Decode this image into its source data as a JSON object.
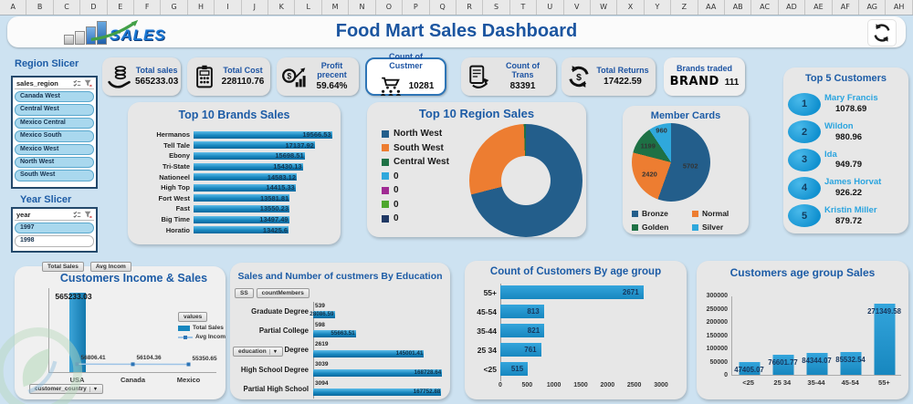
{
  "excel_columns": [
    "A",
    "B",
    "C",
    "D",
    "E",
    "F",
    "G",
    "H",
    "I",
    "J",
    "K",
    "L",
    "M",
    "N",
    "O",
    "P",
    "Q",
    "R",
    "S",
    "T",
    "U",
    "V",
    "W",
    "X",
    "Y",
    "Z",
    "AA",
    "AB",
    "AC",
    "AD",
    "AE",
    "AF",
    "AG",
    "AH"
  ],
  "header": {
    "title": "Food Mart Sales Dashboard",
    "logo_text": "SALES"
  },
  "slicers": {
    "region": {
      "heading": "Region Slicer",
      "field": "sales_region",
      "items": [
        "Canada West",
        "Central West",
        "Mexico Central",
        "Mexico South",
        "Mexico West",
        "North West",
        "South West"
      ]
    },
    "year": {
      "heading": "Year Slicer",
      "field": "year",
      "items": [
        "1997",
        "1998"
      ],
      "selected": "1997"
    }
  },
  "kpis": [
    {
      "label": "Total sales",
      "value": "565233.03",
      "icon": "coins-hand-icon"
    },
    {
      "label": "Total Cost",
      "value": "228110.76",
      "icon": "calculator-icon"
    },
    {
      "label": "Profit precent",
      "value": "59.64%",
      "icon": "money-bag-chart-icon"
    },
    {
      "label": "Count of Custmer",
      "value": "10281",
      "icon": "cart-customers-icon"
    },
    {
      "label": "Count of Trans",
      "value": "83391",
      "icon": "receipt-icon"
    },
    {
      "label": "Total Returns",
      "value": "17422.59",
      "icon": "dollar-refresh-icon"
    },
    {
      "label": "Brands traded",
      "value": "111",
      "icon": "brand-text-icon",
      "icon_text": "BRAND"
    }
  ],
  "top5": {
    "title": "Top 5 Customers",
    "items": [
      {
        "rank": "1",
        "name": "Mary Francis",
        "value": "1078.69"
      },
      {
        "rank": "2",
        "name": "Wildon",
        "value": "980.96"
      },
      {
        "rank": "3",
        "name": "Ida",
        "value": "949.79"
      },
      {
        "rank": "4",
        "name": "James Horvat",
        "value": "926.22"
      },
      {
        "rank": "5",
        "name": "Kristin Miller",
        "value": "879.72"
      }
    ]
  },
  "chart_data": [
    {
      "id": "brands",
      "type": "bar",
      "orientation": "horizontal",
      "title": "Top 10 Brands Sales",
      "categories": [
        "Hermanos",
        "Tell Tale",
        "Ebony",
        "Tri-State",
        "Nationeel",
        "High Top",
        "Fort West",
        "Fast",
        "Big Time",
        "Horatio"
      ],
      "values": [
        19566.53,
        17137.92,
        15698.51,
        15430.13,
        14583.12,
        14415.33,
        13581.81,
        13550.23,
        13497.49,
        13425.6
      ],
      "xlim": [
        0,
        20000
      ]
    },
    {
      "id": "region",
      "type": "pie",
      "subtype": "donut",
      "title": "Top 10 Region Sales",
      "segments": [
        {
          "label": "North West",
          "pct": 71.0,
          "color": "#235e8b"
        },
        {
          "label": "South West",
          "pct": 28.4,
          "color": "#ed7d31"
        },
        {
          "label": "Central West",
          "pct": 0.6,
          "color": "#1e7145"
        }
      ],
      "legend": [
        {
          "label": "North West",
          "color": "#235e8b"
        },
        {
          "label": "South West",
          "color": "#ed7d31"
        },
        {
          "label": "Central West",
          "color": "#1e7145"
        },
        {
          "label": "0",
          "color": "#2fa8dc"
        },
        {
          "label": "0",
          "color": "#a02b93"
        },
        {
          "label": "0",
          "color": "#4ea72e"
        },
        {
          "label": "0",
          "color": "#1f3864"
        }
      ]
    },
    {
      "id": "member",
      "type": "pie",
      "title": "Member Cards",
      "slices": [
        {
          "label": "Bronze",
          "value": 5702,
          "color": "#235e8b"
        },
        {
          "label": "Normal",
          "value": 2420,
          "color": "#ed7d31"
        },
        {
          "label": "Golden",
          "value": 1199,
          "color": "#1e7145"
        },
        {
          "label": "Silver",
          "value": 960,
          "color": "#2fa8dc"
        }
      ],
      "legend_order": [
        "Bronze",
        "Normal",
        "Golden",
        "Silver"
      ]
    },
    {
      "id": "income",
      "type": "combo",
      "title": "Customers Income & Sales",
      "field_buttons": [
        "Total Sales",
        "Avg Incom"
      ],
      "legend_header": "values",
      "axis_button": "customer_country",
      "categories": [
        "USA",
        "Canada",
        "Mexico"
      ],
      "ylim": [
        0,
        600000
      ],
      "series": [
        {
          "name": "Total Sales",
          "type": "bar",
          "color": "#1787bf",
          "values": [
            565233.03,
            0,
            0
          ]
        },
        {
          "name": "Avg Incom",
          "type": "line",
          "color": "#9dc3e6",
          "values": [
            56806.41,
            56104.36,
            55350.65
          ]
        }
      ]
    },
    {
      "id": "education",
      "type": "bar",
      "orientation": "horizontal",
      "title": "Sales and Number of custmers By Education",
      "field_buttons": [
        "SS",
        "countMembers"
      ],
      "axis_button": "education",
      "categories": [
        "Graduate Degree",
        "Partial College",
        "Bachelors Degree",
        "High School Degree",
        "Partial High School"
      ],
      "series": [
        {
          "name": "countMembers",
          "values": [
            539,
            598,
            2619,
            3039,
            3094
          ]
        },
        {
          "name": "Sales",
          "values": [
            28086.59,
            55663.51,
            145001.41,
            168728.64,
            167752.88
          ]
        }
      ],
      "xlim": [
        0,
        172000
      ]
    },
    {
      "id": "agecount",
      "type": "bar",
      "orientation": "horizontal",
      "title": "Count of Customers By age group",
      "categories": [
        "55+",
        "45-54",
        "35-44",
        "25 34",
        "<25"
      ],
      "values": [
        2671,
        813,
        821,
        761,
        515
      ],
      "xticks": [
        0,
        500,
        1000,
        1500,
        2000,
        2500,
        3000
      ],
      "xlim": [
        0,
        3000
      ]
    },
    {
      "id": "agesales",
      "type": "bar",
      "orientation": "vertical",
      "title": "Customers age group Sales",
      "categories": [
        "<25",
        "25 34",
        "35-44",
        "45-54",
        "55+"
      ],
      "values": [
        47405.07,
        76601.77,
        84344.07,
        85532.54,
        271349.58
      ],
      "yticks": [
        300000,
        250000,
        200000,
        150000,
        100000,
        50000,
        0
      ],
      "ylim": [
        0,
        300000
      ]
    }
  ]
}
